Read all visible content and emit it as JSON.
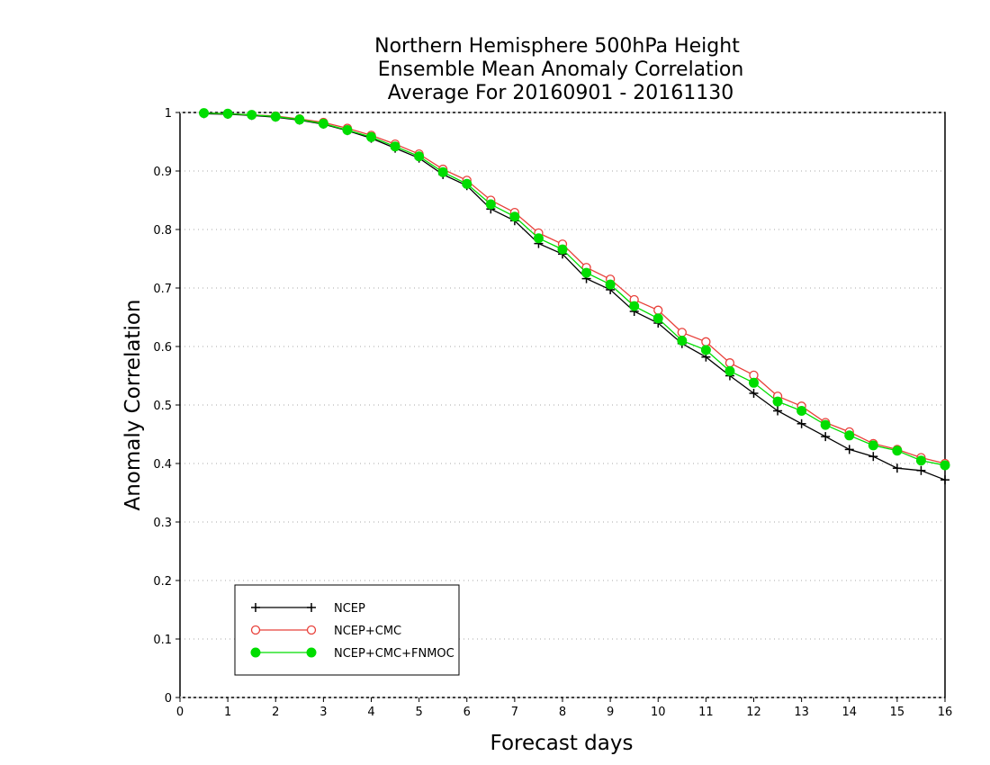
{
  "chart_data": {
    "type": "line",
    "title_lines": [
      "Northern Hemisphere 500hPa Height",
      "Ensemble Mean Anomaly Correlation",
      "Average For 20160901 - 20161130"
    ],
    "xlabel": "Forecast days",
    "ylabel": "Anomaly Correlation",
    "xlim": [
      0,
      16
    ],
    "ylim": [
      0,
      1
    ],
    "xticks": [
      "0",
      "1",
      "2",
      "3",
      "4",
      "5",
      "6",
      "7",
      "8",
      "9",
      "10",
      "11",
      "12",
      "13",
      "14",
      "15",
      "16"
    ],
    "yticks": [
      "0",
      "0.1",
      "0.2",
      "0.3",
      "0.4",
      "0.5",
      "0.6",
      "0.7",
      "0.8",
      "0.9",
      "1"
    ],
    "grid": "dotted horizontal",
    "legend_position": "bottom-left",
    "x": [
      0.5,
      1,
      1.5,
      2,
      2.5,
      3,
      3.5,
      4,
      4.5,
      5,
      5.5,
      6,
      6.5,
      7,
      7.5,
      8,
      8.5,
      9,
      9.5,
      10,
      10.5,
      11,
      11.5,
      12,
      12.5,
      13,
      13.5,
      14,
      14.5,
      15,
      15.5,
      16
    ],
    "series": [
      {
        "name": "NCEP",
        "color": "#000000",
        "marker": "plus",
        "values": [
          0.998,
          0.997,
          0.995,
          0.992,
          0.987,
          0.98,
          0.969,
          0.956,
          0.939,
          0.922,
          0.894,
          0.875,
          0.835,
          0.815,
          0.776,
          0.758,
          0.716,
          0.697,
          0.66,
          0.64,
          0.605,
          0.582,
          0.55,
          0.52,
          0.49,
          0.468,
          0.446,
          0.424,
          0.412,
          0.392,
          0.388,
          0.372
        ]
      },
      {
        "name": "NCEP+CMC",
        "color": "#e8403a",
        "marker": "open-circle",
        "values": [
          0.999,
          0.998,
          0.996,
          0.994,
          0.989,
          0.983,
          0.973,
          0.961,
          0.946,
          0.929,
          0.903,
          0.884,
          0.85,
          0.829,
          0.794,
          0.775,
          0.735,
          0.715,
          0.68,
          0.662,
          0.624,
          0.608,
          0.572,
          0.551,
          0.515,
          0.498,
          0.47,
          0.454,
          0.434,
          0.424,
          0.41,
          0.4
        ]
      },
      {
        "name": "NCEP+CMC+FNMOC",
        "color": "#00dd00",
        "marker": "filled-circle",
        "values": [
          0.999,
          0.998,
          0.996,
          0.993,
          0.988,
          0.981,
          0.97,
          0.958,
          0.942,
          0.925,
          0.898,
          0.878,
          0.843,
          0.822,
          0.785,
          0.766,
          0.726,
          0.706,
          0.669,
          0.648,
          0.61,
          0.594,
          0.558,
          0.538,
          0.506,
          0.49,
          0.466,
          0.448,
          0.431,
          0.422,
          0.405,
          0.397
        ]
      }
    ]
  }
}
